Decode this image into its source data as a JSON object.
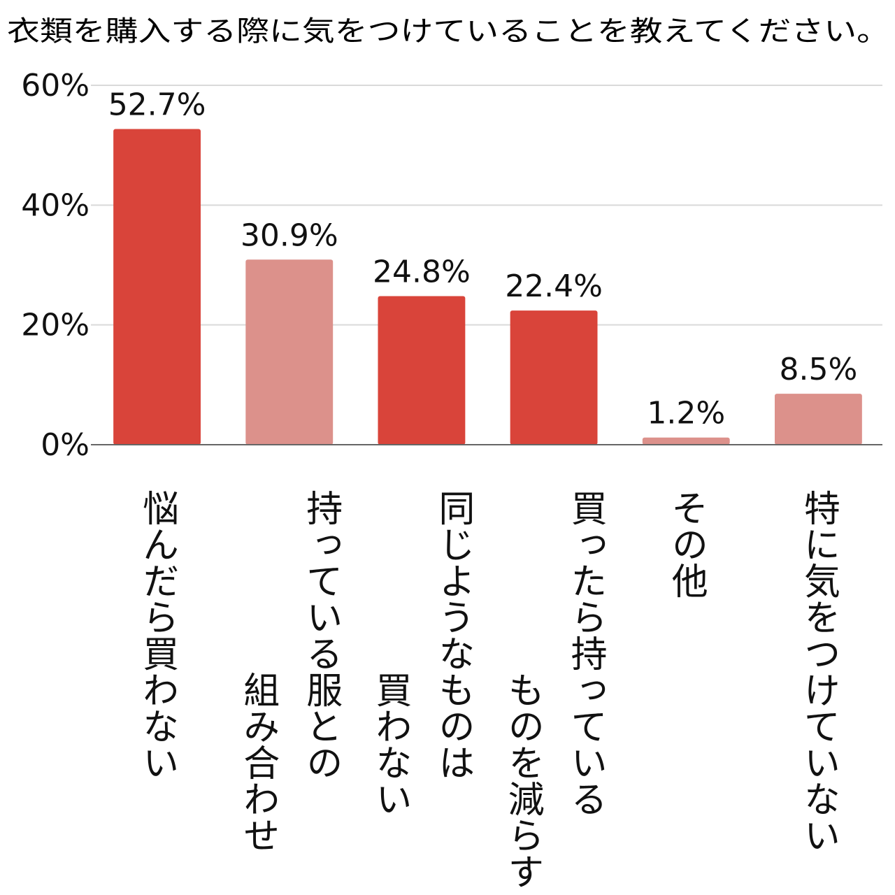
{
  "chart_data": {
    "type": "bar",
    "title": "衣類を購入する際に気をつけていることを教えてください。",
    "xlabel": "",
    "ylabel": "",
    "ylim": [
      0,
      60
    ],
    "yticks": [
      {
        "value": 0,
        "label": "0%"
      },
      {
        "value": 20,
        "label": "20%"
      },
      {
        "value": 40,
        "label": "40%"
      },
      {
        "value": 60,
        "label": "60%"
      }
    ],
    "grid": true,
    "legend": "none",
    "categories": [
      {
        "label_columns": [
          "悩んだら買わない"
        ]
      },
      {
        "label_columns": [
          "持っている服との",
          "組み合わせ"
        ]
      },
      {
        "label_columns": [
          "同じようなものは",
          "買わない"
        ]
      },
      {
        "label_columns": [
          "買ったら持っている",
          "ものを減らす"
        ]
      },
      {
        "label_columns": [
          "その他"
        ]
      },
      {
        "label_columns": [
          "特に気をつけていない"
        ]
      }
    ],
    "values": [
      52.7,
      30.9,
      24.8,
      22.4,
      1.2,
      8.5
    ],
    "value_labels": [
      "52.7%",
      "30.9%",
      "24.8%",
      "22.4%",
      "1.2%",
      "8.5%"
    ],
    "bar_colors": [
      "#d9443a",
      "#dc918b",
      "#d9443a",
      "#d9443a",
      "#dc918b",
      "#dc918b"
    ],
    "colors": {
      "grid": "#d9d9d9",
      "axis": "#666666",
      "text": "#111111"
    }
  }
}
